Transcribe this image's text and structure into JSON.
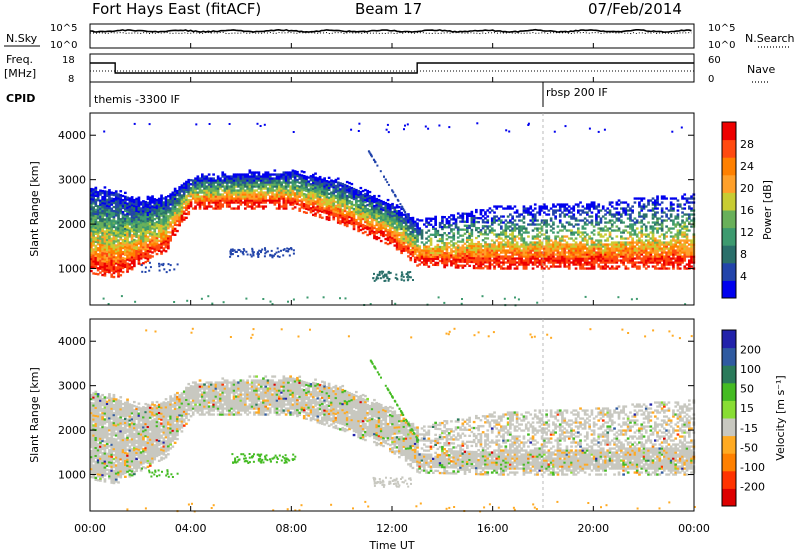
{
  "header": {
    "station": "Fort Hays East (fitACF)",
    "beam": "Beam 17",
    "date": "07/Feb/2014"
  },
  "panels": {
    "nsky_label": "N.Sky",
    "nsearch_label": "N.Search",
    "freq_label_1": "Freq.",
    "freq_label_2": "[MHz]",
    "nave_label": "Nave",
    "cpid_label": "CPID",
    "cpid_1": "themis -3300 IF",
    "cpid_2": "rbsp 200 IF",
    "noise_left_ticks": [
      "10^5",
      "10^0"
    ],
    "noise_right_ticks": [
      "10^5",
      "10^0"
    ],
    "freq_left_ticks": [
      "18",
      "8"
    ],
    "freq_right_ticks": [
      "60",
      "0"
    ]
  },
  "colorbars": {
    "power": {
      "label": "Power [dB]",
      "ticks": [
        "28",
        "24",
        "20",
        "16",
        "12",
        "8",
        "4"
      ],
      "colors": [
        "#0000ee",
        "#2244aa",
        "#2a6f6a",
        "#3d9a6f",
        "#69b05a",
        "#c8cc33",
        "#ffa02a",
        "#ff8000",
        "#ff4a10",
        "#ee0000"
      ]
    },
    "velocity": {
      "label": "Velocity [m s⁻¹]",
      "ticks": [
        "200",
        "100",
        "50",
        "15",
        "-15",
        "-50",
        "-100",
        "-200"
      ],
      "colors": [
        "#2222aa",
        "#2f5aa0",
        "#2a7a5a",
        "#44bb22",
        "#88dd33",
        "#c8c8c0",
        "#ffaa22",
        "#ff8000",
        "#ff3300",
        "#dd0000"
      ]
    }
  },
  "chart_data": {
    "type": "heatmap",
    "xlabel": "Time UT",
    "x_ticks": [
      "00:00",
      "04:00",
      "08:00",
      "12:00",
      "16:00",
      "20:00",
      "00:00"
    ],
    "xlim_hours": [
      0,
      24
    ],
    "ylabel": "Slant Range [km]",
    "y_ticks": [
      "1000",
      "2000",
      "3000",
      "4000"
    ],
    "ylim_km": [
      180,
      4500
    ],
    "cpid_change_hour": 18.0,
    "freq_step_hours": [
      1.0,
      13.0
    ],
    "backscatter_band": [
      {
        "t": 0.0,
        "lo": 1000,
        "hi": 2800
      },
      {
        "t": 1.0,
        "lo": 900,
        "hi": 2700
      },
      {
        "t": 2.0,
        "lo": 1200,
        "hi": 2500
      },
      {
        "t": 3.0,
        "lo": 1500,
        "hi": 2600
      },
      {
        "t": 4.0,
        "lo": 2450,
        "hi": 3000
      },
      {
        "t": 6.0,
        "lo": 2450,
        "hi": 3100
      },
      {
        "t": 8.0,
        "lo": 2450,
        "hi": 3150
      },
      {
        "t": 10.0,
        "lo": 2100,
        "hi": 2900
      },
      {
        "t": 12.0,
        "lo": 1600,
        "hi": 2400
      },
      {
        "t": 13.0,
        "lo": 1150,
        "hi": 2000
      },
      {
        "t": 16.0,
        "lo": 1100,
        "hi": 2300
      },
      {
        "t": 20.0,
        "lo": 1100,
        "hi": 2400
      },
      {
        "t": 24.0,
        "lo": 1100,
        "hi": 2600
      }
    ]
  }
}
